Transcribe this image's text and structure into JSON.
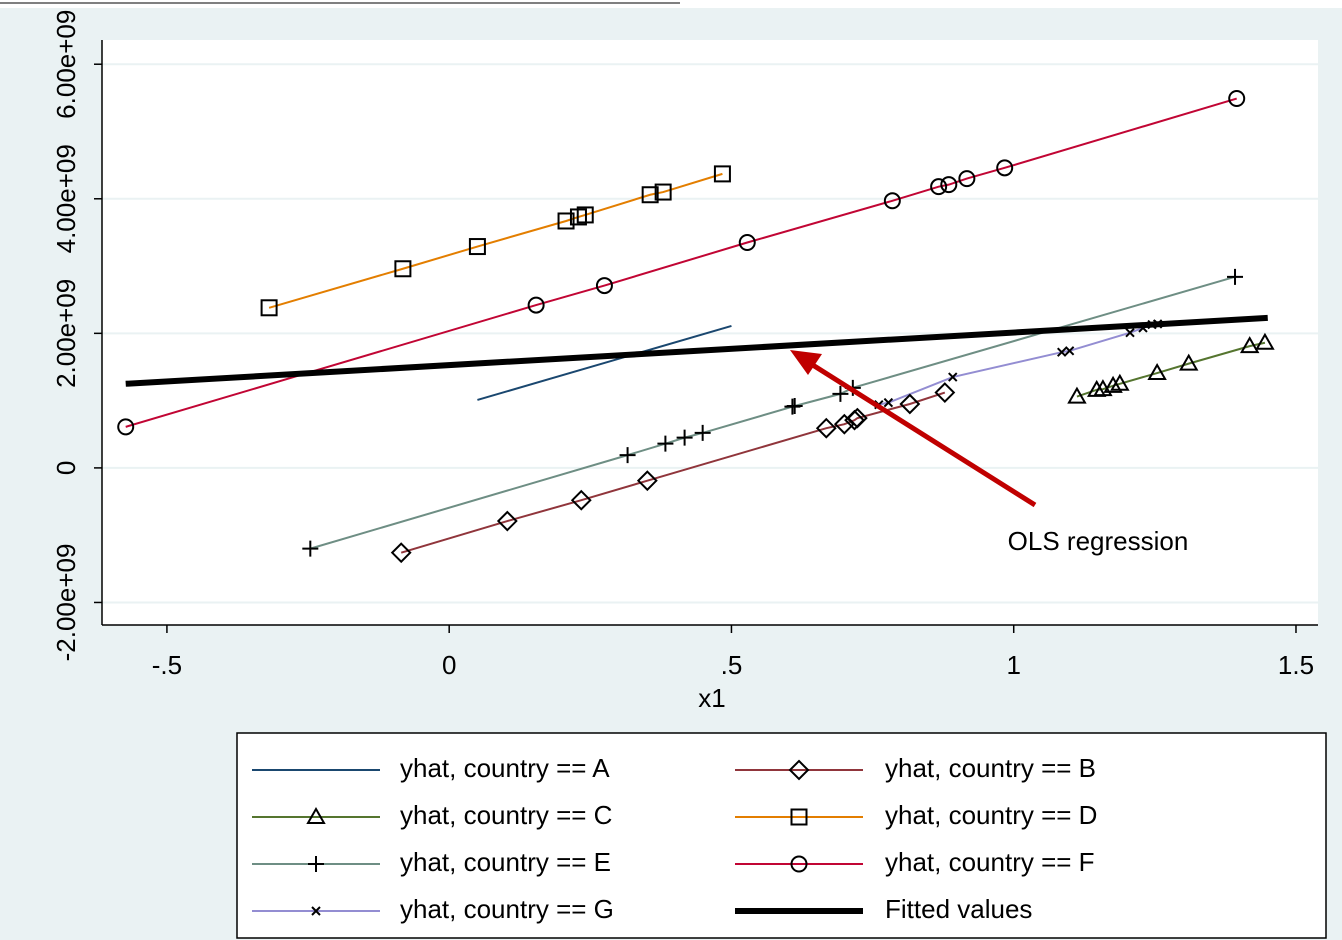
{
  "chart_data": {
    "type": "line",
    "x_label": "x1",
    "xlim": [
      -0.615,
      1.539
    ],
    "ylim": [
      -2335000000,
      6360000000
    ],
    "xticks": [
      {
        "value": -0.5,
        "label": "-.5"
      },
      0,
      {
        "value": 0.5,
        "label": ".5"
      },
      1,
      1.5
    ],
    "yticks": [
      {
        "value": -2000000000,
        "label": "-2.00e+09"
      },
      0,
      {
        "value": 2000000000,
        "label": "2.00e+09"
      },
      {
        "value": 4000000000,
        "label": "4.00e+09"
      },
      {
        "value": 6000000000,
        "label": "6.00e+09"
      }
    ],
    "grid": true,
    "marker_color": "#000000",
    "annotation": "OLS regression",
    "annotation_color": "#c00000",
    "series": [
      {
        "name": "yhat, country == A",
        "color": "#1a476f",
        "marker": "none",
        "line_width": 2,
        "x": [
          0.05,
          0.5
        ],
        "values": [
          1010000000,
          2110000000
        ]
      },
      {
        "name": "yhat, country == B",
        "color": "#90353b",
        "marker": "diamond",
        "line_width": 2,
        "x": [
          -0.085,
          0.103,
          0.234,
          0.351,
          0.668,
          0.7,
          0.718,
          0.723,
          0.816,
          0.878
        ],
        "values": [
          -1260000000,
          -790000000,
          -480000000,
          -190000000,
          590000000,
          650000000,
          710000000,
          740000000,
          950000000,
          1120000000
        ]
      },
      {
        "name": "yhat, country == C",
        "color": "#55752f",
        "marker": "triangle",
        "line_width": 2,
        "x": [
          1.112,
          1.147,
          1.158,
          1.176,
          1.188,
          1.254,
          1.31,
          1.418,
          1.445
        ],
        "values": [
          1060000000,
          1160000000,
          1170000000,
          1220000000,
          1250000000,
          1410000000,
          1550000000,
          1810000000,
          1860000000
        ]
      },
      {
        "name": "yhat, country == D",
        "color": "#e37e00",
        "marker": "square",
        "line_width": 2,
        "x": [
          -0.319,
          -0.082,
          0.05,
          0.207,
          0.229,
          0.241,
          0.356,
          0.379,
          0.484
        ],
        "values": [
          2380000000,
          2960000000,
          3290000000,
          3670000000,
          3730000000,
          3760000000,
          4060000000,
          4100000000,
          4370000000
        ]
      },
      {
        "name": "yhat, country == E",
        "color": "#6e8e84",
        "marker": "plus",
        "line_width": 2,
        "x": [
          -0.246,
          0.316,
          0.383,
          0.417,
          0.449,
          0.608,
          0.612,
          0.693,
          0.715,
          1.392
        ],
        "values": [
          -1200000000,
          190000000,
          360000000,
          450000000,
          520000000,
          910000000,
          920000000,
          1100000000,
          1190000000,
          2840000000
        ]
      },
      {
        "name": "yhat, country == F",
        "color": "#c10534",
        "marker": "circle",
        "line_width": 2,
        "x": [
          -0.573,
          0.154,
          0.275,
          0.528,
          0.785,
          0.867,
          0.885,
          0.917,
          0.984,
          1.395
        ],
        "values": [
          610000000,
          2420000000,
          2710000000,
          3350000000,
          3970000000,
          4180000000,
          4210000000,
          4300000000,
          4460000000,
          5490000000
        ]
      },
      {
        "name": "yhat, country == G",
        "color": "#938dd2",
        "marker": "x",
        "line_width": 2,
        "x": [
          0.761,
          0.778,
          0.892,
          1.085,
          1.099,
          1.206,
          1.229,
          1.245,
          1.255
        ],
        "values": [
          940000000,
          970000000,
          1350000000,
          1720000000,
          1740000000,
          2010000000,
          2080000000,
          2130000000,
          2140000000
        ]
      },
      {
        "name": "Fitted values",
        "color": "#000000",
        "marker": "none",
        "line_width": 6,
        "x": [
          -0.573,
          1.45
        ],
        "values": [
          1250000000,
          2230000000
        ]
      }
    ]
  }
}
